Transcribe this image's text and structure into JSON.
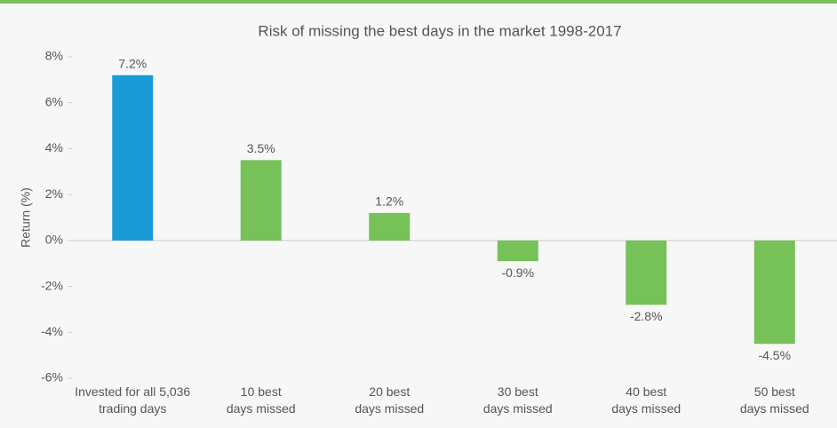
{
  "chart_data": {
    "type": "bar",
    "title": "Risk of missing the best days in the market 1998-2017",
    "y_label": "Return (%)",
    "categories": [
      [
        "Invested for all 5,036",
        "trading days"
      ],
      [
        "10 best",
        "days missed"
      ],
      [
        "20 best",
        "days missed"
      ],
      [
        "30 best",
        "days missed"
      ],
      [
        "40 best",
        "days missed"
      ],
      [
        "50 best",
        "days missed"
      ]
    ],
    "values": [
      7.2,
      3.5,
      1.2,
      -0.9,
      -2.8,
      -4.5
    ],
    "value_labels": [
      "7.2%",
      "3.5%",
      "1.2%",
      "-0.9%",
      "-2.8%",
      "-4.5%"
    ],
    "colors": [
      "#1a9ad6",
      "#77c159",
      "#77c159",
      "#77c159",
      "#77c159",
      "#77c159"
    ],
    "ylim": [
      -6,
      8
    ],
    "yticks": [
      {
        "value": -6,
        "label": "-6%"
      },
      {
        "value": -4,
        "label": "-4%"
      },
      {
        "value": -2,
        "label": "-2%"
      },
      {
        "value": 0,
        "label": "0%"
      },
      {
        "value": 2,
        "label": "2%"
      },
      {
        "value": 4,
        "label": "4%"
      },
      {
        "value": 6,
        "label": "6%"
      },
      {
        "value": 8,
        "label": "8%"
      }
    ],
    "grid": false
  }
}
